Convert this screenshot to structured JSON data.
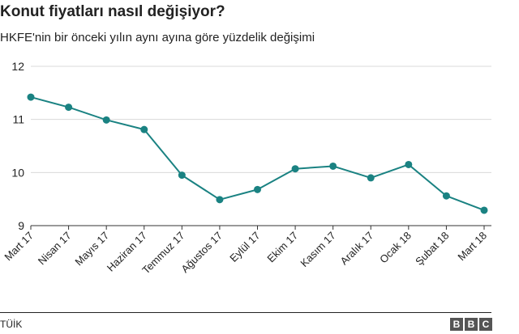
{
  "header": {
    "title": "Konut fiyatları nasıl değişiyor?",
    "subtitle": "HKFE'nin bir önceki yılın aynı ayına göre yüzdelik değişimi"
  },
  "footer": {
    "source": "TÜİK",
    "logo_letters": [
      "B",
      "B",
      "C"
    ]
  },
  "chart_data": {
    "type": "line",
    "categories": [
      "Mart 17",
      "Nisan 17",
      "Mayıs 17",
      "Haziran 17",
      "Temmuz 17",
      "Ağustos 17",
      "Eylül 17",
      "Ekim 17",
      "Kasım 17",
      "Aralık 17",
      "Ocak 18",
      "Şubat 18",
      "Mart 18"
    ],
    "values": [
      11.42,
      11.23,
      10.99,
      10.81,
      9.95,
      9.49,
      9.68,
      10.07,
      10.12,
      9.9,
      10.15,
      9.56,
      9.29
    ],
    "ylim": [
      9,
      12
    ],
    "yticks": [
      9,
      10,
      11,
      12
    ],
    "grid": true,
    "legend": "none",
    "xlabel": "",
    "ylabel": "",
    "colors": {
      "line": "#1a8282",
      "grid": "#d9d9d9",
      "axis": "#333333"
    }
  }
}
